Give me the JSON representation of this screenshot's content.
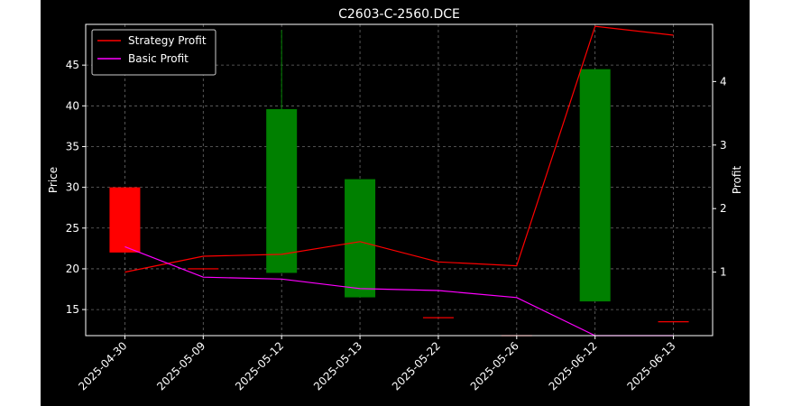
{
  "chart_data": {
    "type": "candlestick",
    "title": "C2603-C-2560.DCE",
    "xlabel": "",
    "ylabel": "Price",
    "y2label": "Profit",
    "categories": [
      "2025-04-30",
      "2025-05-09",
      "2025-05-12",
      "2025-05-13",
      "2025-05-22",
      "2025-05-26",
      "2025-06-12",
      "2025-06-13"
    ],
    "ylim": [
      11.8,
      50.0
    ],
    "y2lim": [
      0.0,
      4.9
    ],
    "yticks": [
      15,
      20,
      25,
      30,
      35,
      40,
      45
    ],
    "y2ticks": [
      1,
      2,
      3,
      4
    ],
    "grid": true,
    "legend_position": "top-left",
    "candles": [
      {
        "date": "2025-04-30",
        "open": 30.0,
        "high": 30.0,
        "low": 22.0,
        "close": 22.0,
        "color": "#ff0000"
      },
      {
        "date": "2025-05-09",
        "open": 20.0,
        "high": 20.0,
        "low": 20.0,
        "close": 20.0,
        "color": "#ff0000"
      },
      {
        "date": "2025-05-12",
        "open": 19.5,
        "high": 49.3,
        "low": 19.5,
        "close": 39.6,
        "color": "#008000"
      },
      {
        "date": "2025-05-13",
        "open": 16.5,
        "high": 31.0,
        "low": 16.5,
        "close": 31.0,
        "color": "#008000"
      },
      {
        "date": "2025-05-22",
        "open": 14.0,
        "high": 14.0,
        "low": 14.0,
        "close": 14.0,
        "color": "#ff0000"
      },
      {
        "date": "2025-05-26",
        "open": 11.8,
        "high": 11.8,
        "low": 11.8,
        "close": 11.8,
        "color": "#ff0000"
      },
      {
        "date": "2025-06-12",
        "open": 16.0,
        "high": 44.5,
        "low": 16.0,
        "close": 44.5,
        "color": "#008000"
      },
      {
        "date": "2025-06-13",
        "open": 13.5,
        "high": 13.5,
        "low": 13.5,
        "close": 13.5,
        "color": "#ff0000"
      }
    ],
    "series": [
      {
        "name": "Strategy Profit",
        "color": "#ff0000",
        "axis": "right",
        "values": [
          1.0,
          1.25,
          1.28,
          1.48,
          1.16,
          1.1,
          4.87,
          4.73
        ]
      },
      {
        "name": "Basic Profit",
        "color": "#ff00ff",
        "axis": "right",
        "values": [
          1.4,
          0.92,
          0.89,
          0.74,
          0.71,
          0.6,
          0.0,
          0.0
        ]
      }
    ]
  }
}
